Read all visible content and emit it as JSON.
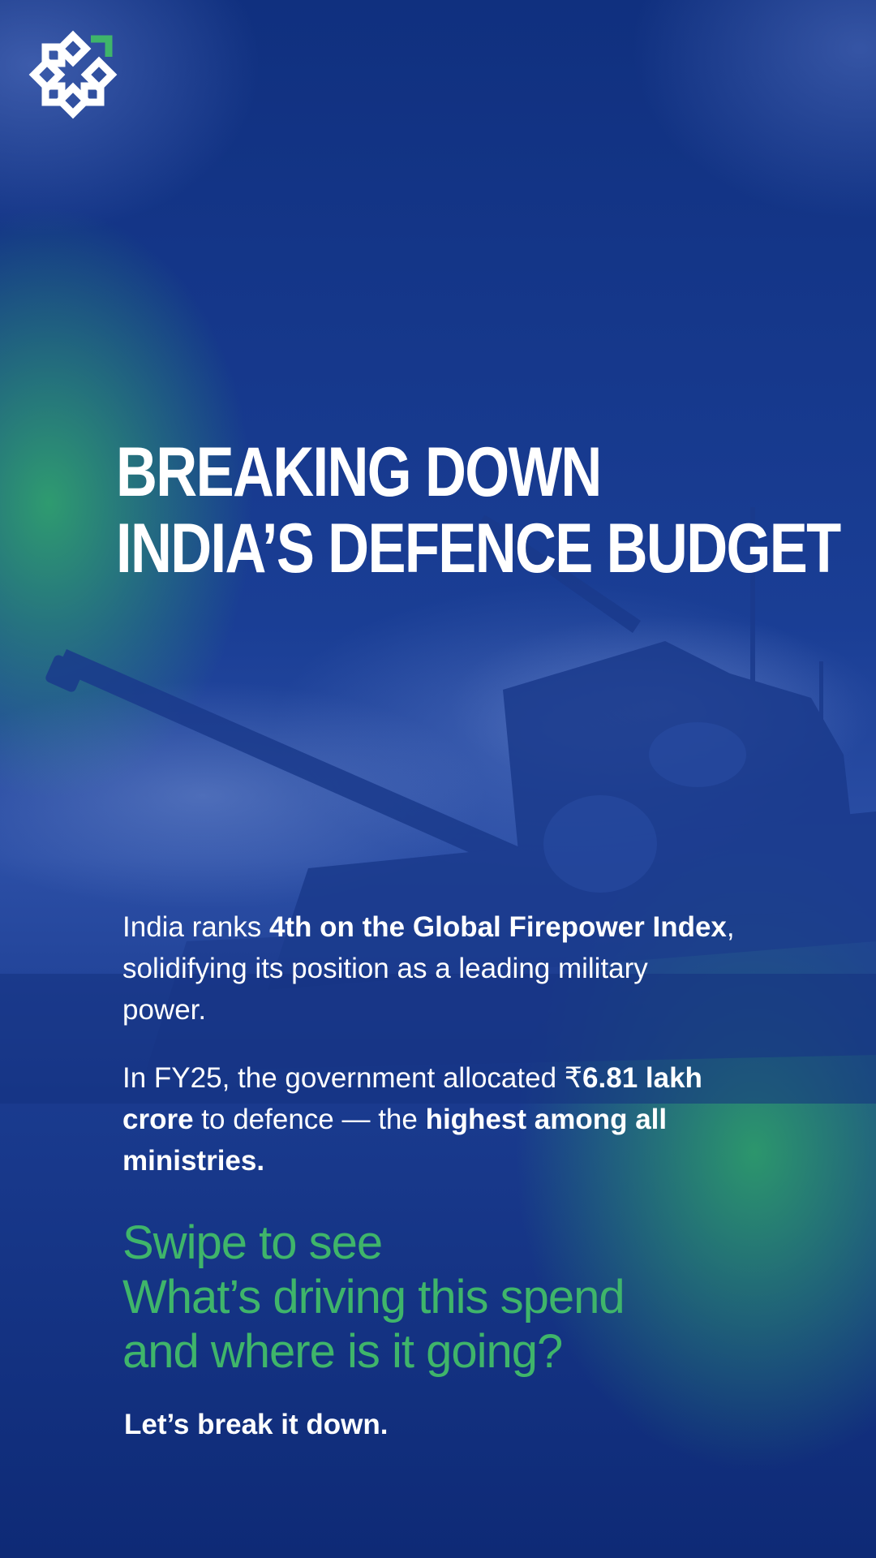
{
  "brand": {
    "logo_icon": "rosette-logo-icon",
    "accent_color": "#3fb56a"
  },
  "title": {
    "line1": "BREAKING DOWN",
    "line2": "INDIA’S DEFENCE BUDGET"
  },
  "paragraph1": {
    "t1": "India ranks ",
    "b1": "4th on the Global Firepower Index",
    "t2": ", solidifying its position as a leading military power."
  },
  "paragraph2": {
    "t1": "In FY25, the government allocated ₹",
    "b1": "6.81 lakh crore",
    "t2": " to defence — the ",
    "b2": "highest among all ministries."
  },
  "cta": {
    "line1": "Swipe to see",
    "line2": "What’s driving this spend",
    "line3": "and where is it going?"
  },
  "closer": "Let’s break it down."
}
